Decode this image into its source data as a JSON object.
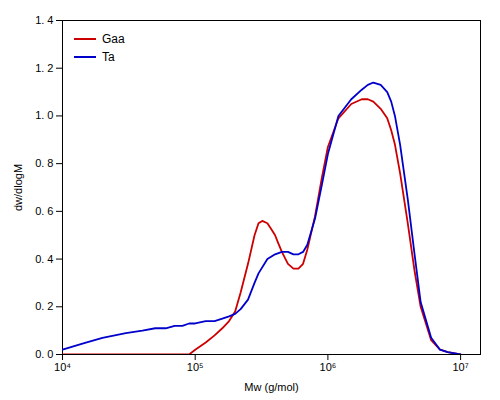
{
  "chart_data": {
    "type": "line",
    "xlabel": "Mw (g/mol)",
    "ylabel": "dw/dlogM",
    "log": "x",
    "grid": false,
    "legend": "upper left",
    "xlim": [
      10000,
      14125375.446227545
    ],
    "xticks": [
      {
        "value": 10000,
        "label": "10⁴"
      },
      {
        "value": 100000,
        "label": "10⁵"
      },
      {
        "value": 1000000,
        "label": "10⁶"
      },
      {
        "value": 10000000,
        "label": "10⁷"
      }
    ],
    "ylim": [
      0,
      1.4
    ],
    "yticks": [
      {
        "value": 0.0,
        "label": "0. 0"
      },
      {
        "value": 0.2,
        "label": "0. 2"
      },
      {
        "value": 0.4,
        "label": "0. 4"
      },
      {
        "value": 0.6,
        "label": "0. 6"
      },
      {
        "value": 0.8,
        "label": "0. 8"
      },
      {
        "value": 1.0,
        "label": "1. 0"
      },
      {
        "value": 1.2,
        "label": "1. 2"
      },
      {
        "value": 1.4,
        "label": "1. 4"
      }
    ],
    "series": [
      {
        "name": "Gaa",
        "color": "#cc0000",
        "x": [
          10000,
          15000,
          20000,
          30000,
          40000,
          50000,
          60000,
          70000,
          80000,
          90000,
          100000,
          120000,
          140000,
          160000,
          180000,
          200000,
          220000,
          250000,
          280000,
          300000,
          320000,
          350000,
          380000,
          400000,
          420000,
          450000,
          500000,
          550000,
          600000,
          650000,
          700000,
          800000,
          900000,
          1000000,
          1200000,
          1500000,
          1800000,
          2000000,
          2200000,
          2500000,
          2800000,
          3000000,
          3200000,
          3500000,
          4000000,
          4500000,
          5000000,
          6000000,
          7000000,
          8000000,
          10000000
        ],
        "values": [
          0.0,
          0.0,
          0.0,
          0.0,
          0.0,
          0.0,
          0.0,
          0.0,
          0.0,
          0.0,
          0.02,
          0.05,
          0.08,
          0.11,
          0.14,
          0.18,
          0.26,
          0.38,
          0.5,
          0.55,
          0.56,
          0.55,
          0.52,
          0.5,
          0.47,
          0.43,
          0.38,
          0.36,
          0.36,
          0.38,
          0.44,
          0.58,
          0.74,
          0.87,
          0.99,
          1.05,
          1.07,
          1.07,
          1.06,
          1.03,
          0.99,
          0.94,
          0.88,
          0.76,
          0.55,
          0.35,
          0.2,
          0.06,
          0.02,
          0.01,
          0.0
        ]
      },
      {
        "name": "Ta",
        "color": "#0000cc",
        "x": [
          10000,
          15000,
          20000,
          30000,
          40000,
          50000,
          60000,
          70000,
          80000,
          90000,
          100000,
          120000,
          140000,
          160000,
          180000,
          200000,
          220000,
          250000,
          280000,
          300000,
          350000,
          400000,
          450000,
          500000,
          550000,
          600000,
          650000,
          700000,
          800000,
          900000,
          1000000,
          1200000,
          1500000,
          1800000,
          2000000,
          2200000,
          2500000,
          2800000,
          3000000,
          3200000,
          3500000,
          4000000,
          4500000,
          5000000,
          6000000,
          7000000,
          8000000,
          10000000
        ],
        "values": [
          0.02,
          0.05,
          0.07,
          0.09,
          0.1,
          0.11,
          0.11,
          0.12,
          0.12,
          0.13,
          0.13,
          0.14,
          0.14,
          0.15,
          0.16,
          0.17,
          0.19,
          0.23,
          0.3,
          0.34,
          0.4,
          0.42,
          0.43,
          0.43,
          0.42,
          0.42,
          0.43,
          0.46,
          0.57,
          0.71,
          0.84,
          1.0,
          1.07,
          1.11,
          1.13,
          1.14,
          1.13,
          1.1,
          1.06,
          1.0,
          0.88,
          0.65,
          0.42,
          0.22,
          0.07,
          0.02,
          0.01,
          0.0
        ]
      }
    ]
  }
}
